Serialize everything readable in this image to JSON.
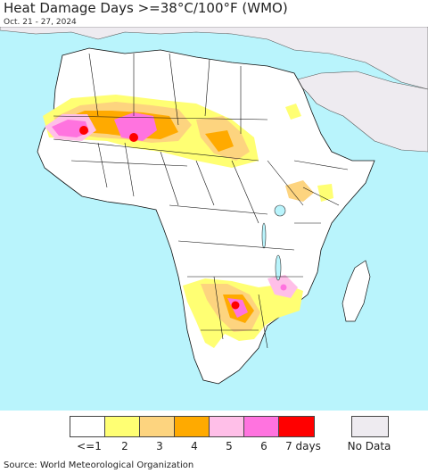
{
  "title": "Heat Damage Days >=38°C/100°F (WMO)",
  "subtitle": "Oct. 21 - 27, 2024",
  "legend": {
    "colors": [
      "#ffffff",
      "#ffff73",
      "#fdd47f",
      "#ffaa00",
      "#ffbfe8",
      "#ff73df",
      "#ff0000"
    ],
    "labels": [
      "<=1",
      "2",
      "3",
      "4",
      "5",
      "6",
      "7 days"
    ],
    "no_data_color": "#eeebf0",
    "no_data_label": "No Data"
  },
  "map_colors": {
    "ocean": "#b9f4fc",
    "land": "#ffffff",
    "no_data_land": "#eeebf0",
    "border": "#111111"
  },
  "source": "Source: World Meteorological Organization"
}
